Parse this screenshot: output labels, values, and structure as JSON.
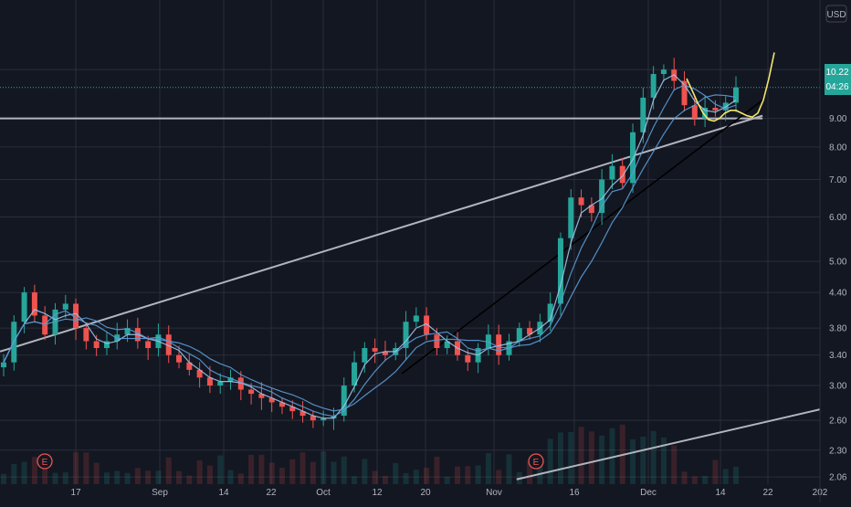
{
  "chart_data": {
    "type": "candlestick",
    "currency_label": "USD",
    "y_scale": "log",
    "ylim": [
      2.0,
      12.6
    ],
    "y_ticks": [
      "11.00",
      "9.00",
      "8.00",
      "7.00",
      "6.00",
      "5.00",
      "4.40",
      "3.80",
      "3.40",
      "3.00",
      "2.60",
      "2.30",
      "2.06"
    ],
    "x_ticks": [
      "17",
      "Sep",
      "14",
      "22",
      "Oct",
      "12",
      "20",
      "Nov",
      "16",
      "Dec",
      "14",
      "22",
      "202"
    ],
    "price_tag": {
      "value": "10.22",
      "countdown": "04:26",
      "color": "#26a69a"
    },
    "earnings_markers": [
      "E",
      "E"
    ],
    "close_series": [
      3.3,
      3.9,
      4.4,
      4.0,
      3.7,
      4.1,
      4.2,
      3.8,
      3.6,
      3.5,
      3.6,
      3.7,
      3.8,
      3.6,
      3.5,
      3.7,
      3.4,
      3.3,
      3.2,
      3.1,
      3.0,
      3.05,
      3.1,
      2.95,
      2.9,
      2.85,
      2.8,
      2.75,
      2.7,
      2.65,
      2.6,
      2.62,
      2.65,
      3.0,
      3.3,
      3.5,
      3.45,
      3.4,
      3.5,
      3.9,
      4.0,
      3.7,
      3.5,
      3.6,
      3.4,
      3.3,
      3.5,
      3.7,
      3.4,
      3.6,
      3.8,
      3.7,
      3.9,
      4.2,
      5.5,
      6.5,
      6.3,
      6.1,
      7.0,
      7.4,
      6.9,
      8.5,
      9.8,
      10.8,
      11.0,
      10.5,
      9.5,
      9.0,
      9.4,
      9.3,
      9.6,
      10.22
    ],
    "lines": [
      {
        "name": "",
        "color": "#b2b5be",
        "from": [
          0,
          3.45
        ],
        "to": [
          0.93,
          9.1
        ]
      },
      {
        "name": "",
        "color": "#b2b5be",
        "from": [
          0,
          9.0
        ],
        "to": [
          0.93,
          9.0
        ]
      },
      {
        "name": "",
        "color": "#b2b5be",
        "from": [
          0.63,
          2.04
        ],
        "to": [
          1.0,
          2.72
        ]
      },
      {
        "name": "",
        "color": "#000000",
        "from": [
          0.49,
          3.15
        ],
        "to": [
          0.93,
          9.7
        ]
      }
    ],
    "colors": {
      "background": "#131722",
      "up": "#26a69a",
      "down": "#ef5350",
      "ma": "#5b9bd5",
      "projection": "#f5e56b",
      "grid": "#2a2e39"
    }
  }
}
